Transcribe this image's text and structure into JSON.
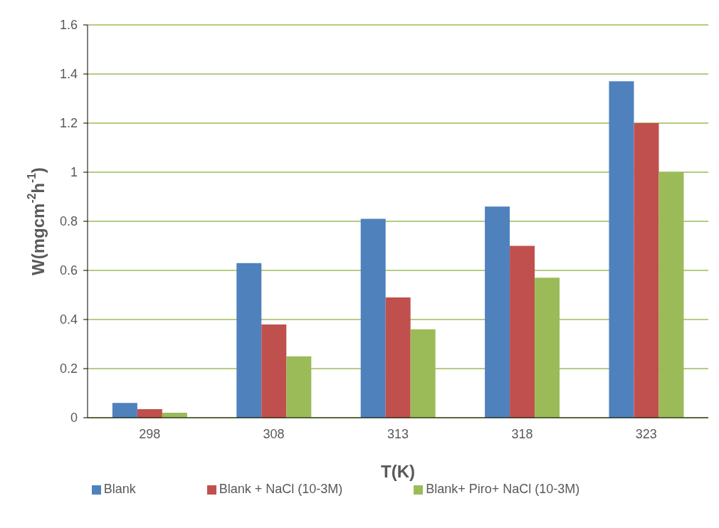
{
  "chart_data": {
    "type": "bar",
    "xlabel": "T(K)",
    "ylabel": "W(mgcm$^{-2}$h$^{-1}$)",
    "categories": [
      "298",
      "308",
      "313",
      "318",
      "323"
    ],
    "series": [
      {
        "name": "Blank",
        "color": "#4f81bd",
        "values": [
          0.06,
          0.63,
          0.81,
          0.86,
          1.37
        ]
      },
      {
        "name": "Blank + NaCl (10-3M)",
        "color": "#c0504d",
        "values": [
          0.035,
          0.38,
          0.49,
          0.7,
          1.2
        ]
      },
      {
        "name": "Blank+ Piro+ NaCl (10-3M)",
        "color": "#9bbb59",
        "values": [
          0.02,
          0.25,
          0.36,
          0.57,
          1.0
        ]
      }
    ],
    "ylim": [
      0,
      1.6
    ],
    "yticks": [
      0,
      0.2,
      0.4,
      0.6,
      0.8,
      1,
      1.2,
      1.4,
      1.6
    ],
    "grid": "y",
    "legend": "bottom"
  }
}
